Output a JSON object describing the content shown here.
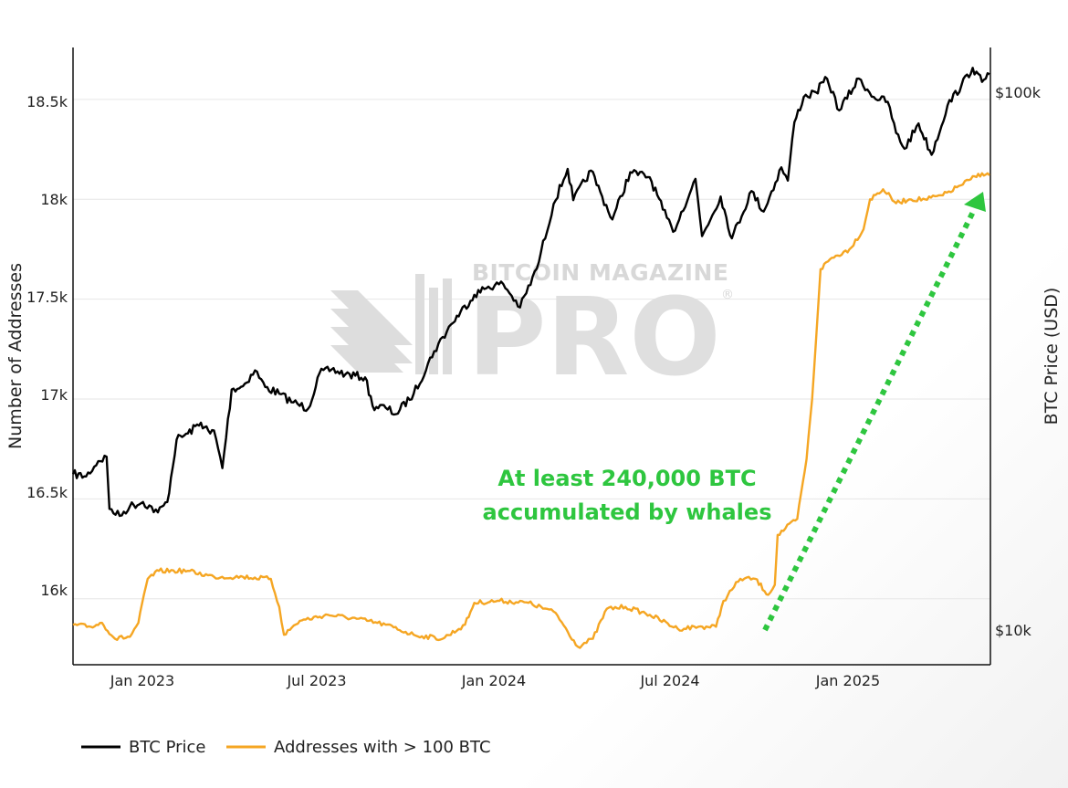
{
  "chart_data": {
    "type": "line",
    "x_ticks": [
      "Jan 2023",
      "Jul 2023",
      "Jan 2024",
      "Jul 2024",
      "Jan 2025"
    ],
    "y_left": {
      "label": "Number of Addresses",
      "range": [
        15670,
        18760
      ],
      "ticks": [
        "16k",
        "16.5k",
        "17k",
        "17.5k",
        "18k",
        "18.5k"
      ]
    },
    "y_right": {
      "label": "BTC Price (USD)",
      "scale": "log",
      "ticks": [
        "$10k",
        "$100k"
      ]
    },
    "x_range": [
      "2022-10-01",
      "2025-06-10"
    ],
    "grid": true,
    "legend_position": "bottom-left",
    "series": [
      {
        "name": "BTC Price",
        "color": "#000000",
        "axis": "right",
        "points": [
          [
            "2022-10-01",
            19500
          ],
          [
            "2022-10-15",
            19300
          ],
          [
            "2022-10-28",
            20600
          ],
          [
            "2022-11-06",
            21000
          ],
          [
            "2022-11-09",
            16800
          ],
          [
            "2022-11-20",
            16300
          ],
          [
            "2022-12-01",
            17000
          ],
          [
            "2022-12-15",
            17300
          ],
          [
            "2022-12-31",
            16550
          ],
          [
            "2023-01-10",
            17300
          ],
          [
            "2023-01-20",
            22600
          ],
          [
            "2023-02-01",
            23200
          ],
          [
            "2023-02-15",
            24300
          ],
          [
            "2023-02-25",
            23200
          ],
          [
            "2023-03-01",
            23500
          ],
          [
            "2023-03-10",
            20000
          ],
          [
            "2023-03-20",
            28000
          ],
          [
            "2023-04-01",
            28400
          ],
          [
            "2023-04-14",
            30400
          ],
          [
            "2023-04-25",
            28300
          ],
          [
            "2023-05-10",
            27500
          ],
          [
            "2023-05-25",
            26500
          ],
          [
            "2023-06-10",
            25800
          ],
          [
            "2023-06-22",
            30000
          ],
          [
            "2023-07-05",
            30500
          ],
          [
            "2023-07-20",
            29900
          ],
          [
            "2023-08-10",
            29500
          ],
          [
            "2023-08-18",
            26100
          ],
          [
            "2023-09-01",
            25900
          ],
          [
            "2023-09-12",
            25200
          ],
          [
            "2023-10-01",
            27500
          ],
          [
            "2023-10-23",
            33000
          ],
          [
            "2023-11-10",
            37000
          ],
          [
            "2023-12-05",
            42000
          ],
          [
            "2023-12-20",
            43500
          ],
          [
            "2024-01-05",
            44000
          ],
          [
            "2024-01-23",
            39800
          ],
          [
            "2024-02-10",
            47000
          ],
          [
            "2024-02-28",
            62000
          ],
          [
            "2024-03-14",
            72000
          ],
          [
            "2024-03-20",
            63000
          ],
          [
            "2024-04-08",
            71500
          ],
          [
            "2024-04-20",
            64000
          ],
          [
            "2024-05-01",
            58000
          ],
          [
            "2024-05-20",
            71000
          ],
          [
            "2024-06-10",
            69500
          ],
          [
            "2024-06-24",
            60500
          ],
          [
            "2024-07-05",
            55000
          ],
          [
            "2024-07-29",
            69000
          ],
          [
            "2024-08-05",
            54000
          ],
          [
            "2024-08-25",
            64000
          ],
          [
            "2024-09-06",
            53500
          ],
          [
            "2024-09-27",
            65500
          ],
          [
            "2024-10-10",
            60000
          ],
          [
            "2024-10-29",
            72500
          ],
          [
            "2024-11-05",
            68500
          ],
          [
            "2024-11-12",
            88000
          ],
          [
            "2024-11-22",
            98000
          ],
          [
            "2024-12-05",
            100000
          ],
          [
            "2024-12-17",
            106000
          ],
          [
            "2024-12-30",
            92500
          ],
          [
            "2025-01-20",
            106000
          ],
          [
            "2025-02-05",
            98000
          ],
          [
            "2025-02-20",
            96000
          ],
          [
            "2025-03-01",
            84000
          ],
          [
            "2025-03-10",
            78500
          ],
          [
            "2025-03-25",
            87500
          ],
          [
            "2025-04-08",
            76500
          ],
          [
            "2025-04-25",
            94500
          ],
          [
            "2025-05-10",
            103000
          ],
          [
            "2025-05-22",
            111000
          ],
          [
            "2025-06-01",
            104500
          ],
          [
            "2025-06-09",
            108000
          ]
        ]
      },
      {
        "name": "Addresses with > 100 BTC",
        "color": "#f5a623",
        "axis": "left",
        "points": [
          [
            "2022-10-01",
            15870
          ],
          [
            "2022-10-20",
            15860
          ],
          [
            "2022-11-01",
            15880
          ],
          [
            "2022-11-15",
            15800
          ],
          [
            "2022-12-01",
            15810
          ],
          [
            "2022-12-10",
            15880
          ],
          [
            "2022-12-20",
            16100
          ],
          [
            "2023-01-01",
            16140
          ],
          [
            "2023-02-01",
            16140
          ],
          [
            "2023-03-01",
            16110
          ],
          [
            "2023-04-01",
            16110
          ],
          [
            "2023-05-01",
            16100
          ],
          [
            "2023-05-10",
            15960
          ],
          [
            "2023-05-15",
            15820
          ],
          [
            "2023-06-01",
            15890
          ],
          [
            "2023-07-01",
            15920
          ],
          [
            "2023-08-01",
            15900
          ],
          [
            "2023-09-01",
            15870
          ],
          [
            "2023-10-01",
            15820
          ],
          [
            "2023-11-01",
            15800
          ],
          [
            "2023-11-25",
            15870
          ],
          [
            "2023-12-05",
            15980
          ],
          [
            "2024-01-01",
            15990
          ],
          [
            "2024-02-01",
            15980
          ],
          [
            "2024-03-01",
            15930
          ],
          [
            "2024-03-25",
            15760
          ],
          [
            "2024-04-10",
            15800
          ],
          [
            "2024-04-25",
            15950
          ],
          [
            "2024-05-15",
            15960
          ],
          [
            "2024-06-10",
            15920
          ],
          [
            "2024-07-10",
            15850
          ],
          [
            "2024-08-01",
            15860
          ],
          [
            "2024-08-20",
            15860
          ],
          [
            "2024-08-28",
            15990
          ],
          [
            "2024-09-15",
            16100
          ],
          [
            "2024-10-01",
            16100
          ],
          [
            "2024-10-15",
            16020
          ],
          [
            "2024-10-22",
            16070
          ],
          [
            "2024-10-25",
            16320
          ],
          [
            "2024-11-15",
            16400
          ],
          [
            "2024-11-25",
            16700
          ],
          [
            "2024-12-01",
            17000
          ],
          [
            "2024-12-10",
            17650
          ],
          [
            "2024-12-20",
            17700
          ],
          [
            "2025-01-10",
            17750
          ],
          [
            "2025-01-25",
            17850
          ],
          [
            "2025-02-01",
            18000
          ],
          [
            "2025-02-15",
            18050
          ],
          [
            "2025-03-01",
            17980
          ],
          [
            "2025-03-15",
            18000
          ],
          [
            "2025-04-01",
            18000
          ],
          [
            "2025-04-20",
            18020
          ],
          [
            "2025-05-05",
            18060
          ],
          [
            "2025-05-20",
            18100
          ],
          [
            "2025-06-01",
            18130
          ],
          [
            "2025-06-09",
            18120
          ]
        ]
      }
    ],
    "annotation": {
      "text_lines": [
        "At least 240,000 BTC",
        "accumulated by whales"
      ],
      "arrow_color": "#2ec63f"
    },
    "watermark": {
      "top": "BITCOIN MAGAZINE",
      "main": "PRO",
      "mark": "®"
    }
  }
}
